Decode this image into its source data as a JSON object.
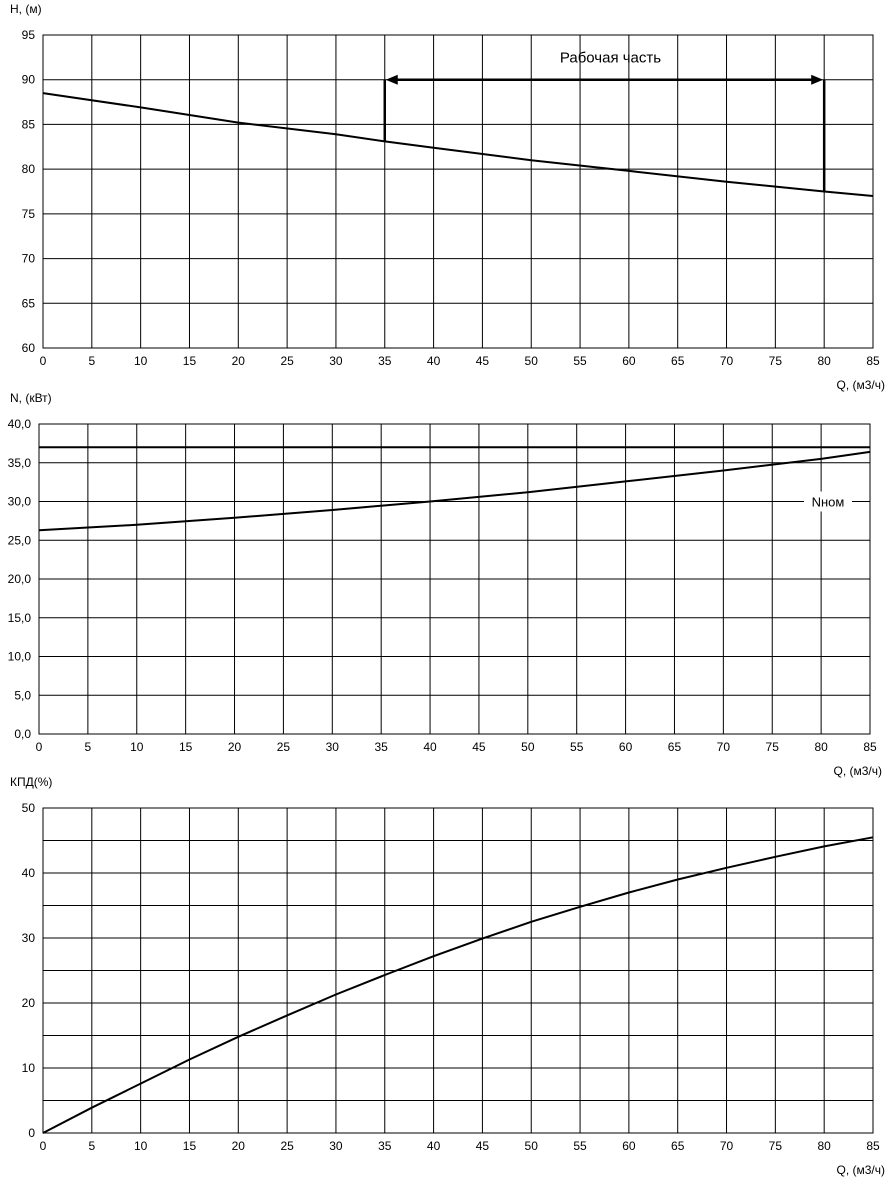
{
  "chart_data": [
    {
      "type": "line",
      "ylabel": "H, (м)",
      "xlabel": "Q, (м3/ч)",
      "xlim": [
        0,
        85
      ],
      "ylim": [
        60,
        95
      ],
      "x_ticks": [
        "0",
        "5",
        "10",
        "15",
        "20",
        "25",
        "30",
        "35",
        "40",
        "45",
        "50",
        "55",
        "60",
        "65",
        "70",
        "75",
        "80",
        "85"
      ],
      "y_ticks": [
        "95",
        "90",
        "85",
        "80",
        "75",
        "70",
        "65",
        "60"
      ],
      "grid": true,
      "series": [
        {
          "x": [
            0,
            10,
            20,
            30,
            35,
            40,
            50,
            60,
            70,
            80,
            85
          ],
          "y": [
            88.5,
            86.9,
            85.2,
            83.9,
            83.1,
            82.4,
            81.0,
            79.8,
            78.6,
            77.5,
            77.0
          ]
        }
      ],
      "working_range": {
        "label": "Рабочая часть",
        "q_from": 35,
        "q_to": 80,
        "h_level": 90
      }
    },
    {
      "type": "line",
      "ylabel": "N, (кВт)",
      "xlabel": "Q, (м3/ч)",
      "xlim": [
        0,
        85
      ],
      "ylim": [
        0,
        40
      ],
      "x_ticks": [
        "0",
        "5",
        "10",
        "15",
        "20",
        "25",
        "30",
        "35",
        "40",
        "45",
        "50",
        "55",
        "60",
        "65",
        "70",
        "75",
        "80",
        "85"
      ],
      "y_ticks": [
        "40,0",
        "35,0",
        "30,0",
        "25,0",
        "20,0",
        "15,0",
        "10,0",
        "5,0",
        "0,0"
      ],
      "grid": true,
      "series": [
        {
          "x": [
            0,
            10,
            20,
            30,
            40,
            50,
            60,
            70,
            80,
            85
          ],
          "y": [
            26.3,
            27.0,
            27.9,
            28.9,
            30.0,
            31.2,
            32.6,
            34.0,
            35.5,
            36.4
          ]
        },
        {
          "name": "Nном",
          "x": [
            0,
            85
          ],
          "y": [
            37.0,
            37.0
          ]
        }
      ],
      "annotation": {
        "text": "Nном",
        "x": 80.7,
        "y": 30.0
      }
    },
    {
      "type": "line",
      "ylabel": "КПД(%)",
      "xlabel": "Q, (м3/ч)",
      "xlim": [
        0,
        85
      ],
      "ylim": [
        0,
        50
      ],
      "x_ticks": [
        "0",
        "5",
        "10",
        "15",
        "20",
        "25",
        "30",
        "35",
        "40",
        "45",
        "50",
        "55",
        "60",
        "65",
        "70",
        "75",
        "80",
        "85"
      ],
      "y_ticks": [
        "50",
        "40",
        "30",
        "20",
        "10",
        "0"
      ],
      "grid": true,
      "series": [
        {
          "x": [
            0,
            5,
            10,
            15,
            20,
            25,
            30,
            35,
            40,
            45,
            50,
            55,
            60,
            65,
            70,
            75,
            80,
            85
          ],
          "y": [
            0,
            3.9,
            7.6,
            11.3,
            14.8,
            18.1,
            21.3,
            24.3,
            27.2,
            29.9,
            32.5,
            34.8,
            37.0,
            39.0,
            40.8,
            42.5,
            44.1,
            45.5
          ]
        }
      ]
    }
  ]
}
